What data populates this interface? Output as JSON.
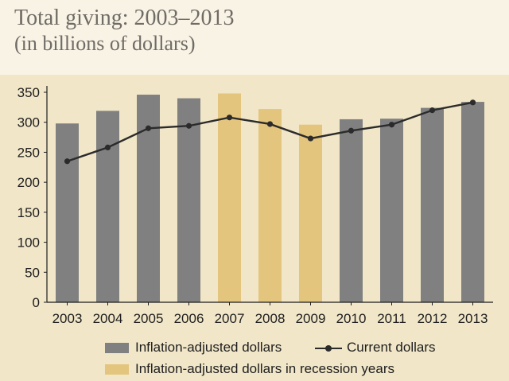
{
  "title": "Total giving: 2003–2013",
  "subtitle": "(in billions of dollars)",
  "colors": {
    "background_top": "#f8f3e4",
    "plot_background": "#f1e6c8",
    "bar_normal": "#808080",
    "bar_recession": "#e4c57e",
    "line": "#2b2b2b"
  },
  "legend": {
    "inflation_label": "Inflation-adjusted dollars",
    "current_label": "Current dollars",
    "recession_label": "Inflation-adjusted dollars in recession years"
  },
  "chart_data": {
    "type": "bar",
    "title": "Total giving: 2003–2013",
    "subtitle": "(in billions of dollars)",
    "categories": [
      "2003",
      "2004",
      "2005",
      "2006",
      "2007",
      "2008",
      "2009",
      "2010",
      "2011",
      "2012",
      "2013"
    ],
    "ylim": [
      0,
      350
    ],
    "yticks": [
      0,
      50,
      100,
      150,
      200,
      250,
      300,
      350
    ],
    "grid": false,
    "legend_position": "bottom",
    "recession_years": [
      "2007",
      "2008",
      "2009"
    ],
    "series": [
      {
        "name": "Inflation-adjusted dollars",
        "type": "bar",
        "values": [
          298,
          319,
          346,
          340,
          348,
          322,
          296,
          305,
          306,
          324,
          334
        ]
      },
      {
        "name": "Current dollars",
        "type": "line",
        "values": [
          235,
          258,
          290,
          294,
          308,
          297,
          273,
          286,
          296,
          320,
          333
        ]
      }
    ]
  }
}
